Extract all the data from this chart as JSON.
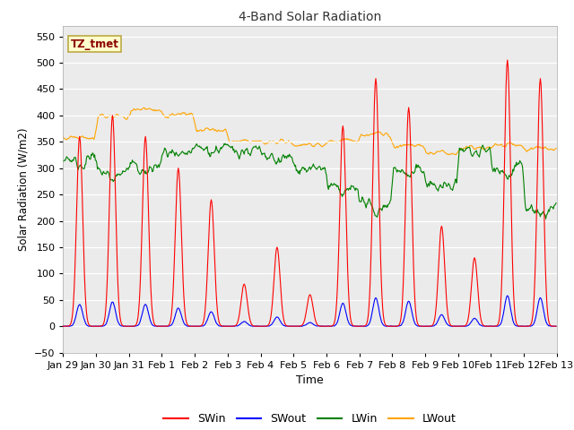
{
  "title": "4-Band Solar Radiation",
  "xlabel": "Time",
  "ylabel": "Solar Radiation (W/m2)",
  "ylim": [
    -50,
    570
  ],
  "yticks": [
    -50,
    0,
    50,
    100,
    150,
    200,
    250,
    300,
    350,
    400,
    450,
    500,
    550
  ],
  "fig_bg": "#ffffff",
  "plot_bg": "#ebebeb",
  "annotation_text": "TZ_tmet",
  "annotation_color": "#8B0000",
  "annotation_bg": "#ffffcc",
  "annotation_border": "#bbaa44",
  "n_days": 15,
  "hours_per_day": 24,
  "dt_hours": 0.5,
  "sw_peaks": [
    360,
    400,
    360,
    300,
    240,
    80,
    150,
    60,
    380,
    470,
    415,
    190,
    130,
    505,
    470
  ],
  "lwin_base": [
    320,
    295,
    305,
    330,
    340,
    335,
    320,
    300,
    265,
    235,
    300,
    270,
    335,
    305,
    225
  ],
  "lwout_base": [
    355,
    395,
    410,
    400,
    370,
    350,
    348,
    345,
    350,
    362,
    340,
    328,
    338,
    342,
    335
  ]
}
